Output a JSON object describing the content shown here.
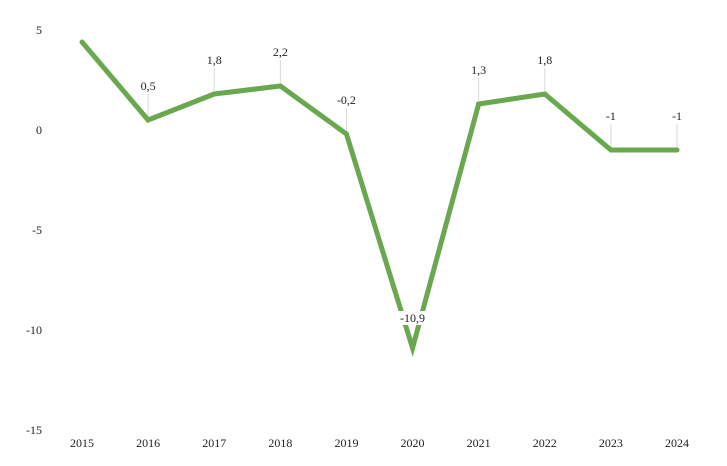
{
  "chart_data": {
    "type": "line",
    "title": "",
    "xlabel": "",
    "ylabel": "",
    "grid": false,
    "categories": [
      "2015",
      "2016",
      "2017",
      "2018",
      "2019",
      "2020",
      "2021",
      "2022",
      "2023",
      "2024"
    ],
    "series": [
      {
        "values": [
          4.4,
          0.5,
          1.8,
          2.2,
          -0.2,
          -10.9,
          1.3,
          1.8,
          -1,
          -1
        ],
        "color": "#6aa84f"
      }
    ],
    "data_labels": [
      "",
      "0,5",
      "1,8",
      "2,2",
      "-0,2",
      "-10,9",
      "1,3",
      "1,8",
      "-1",
      "-1"
    ],
    "ylim": [
      -15,
      5
    ],
    "yticks": [
      5,
      0,
      -5,
      -10,
      -15
    ]
  }
}
